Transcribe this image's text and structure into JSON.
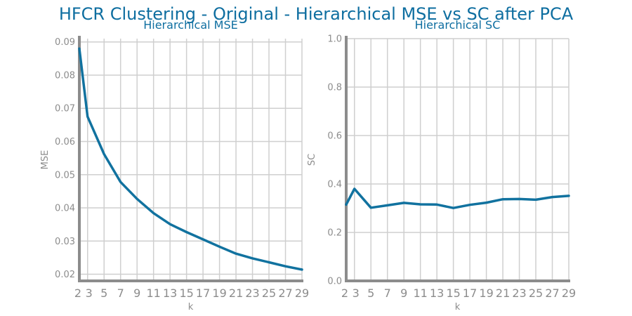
{
  "chart_data": {
    "title": "HFCR Clustering - Original - Hierarchical MSE vs SC after PCA",
    "panels": [
      {
        "type": "line",
        "subtitle": "Hierarchical MSE",
        "xlabel": "k",
        "ylabel": "MSE",
        "xlim": [
          2,
          29
        ],
        "ylim": [
          0.018,
          0.091
        ],
        "xticks": [
          2,
          3,
          5,
          7,
          9,
          11,
          13,
          15,
          17,
          19,
          21,
          23,
          25,
          27,
          29
        ],
        "yticks": [
          0.02,
          0.03,
          0.04,
          0.05,
          0.06,
          0.07,
          0.08,
          0.09
        ],
        "ytick_labels": [
          "0.02",
          "0.03",
          "0.04",
          "0.05",
          "0.06",
          "0.07",
          "0.08",
          "0.09"
        ],
        "grid": true,
        "color": "#11729f",
        "x": [
          2,
          3,
          5,
          7,
          9,
          11,
          13,
          15,
          17,
          19,
          21,
          23,
          25,
          27,
          29
        ],
        "y": [
          0.088,
          0.0675,
          0.0562,
          0.0478,
          0.0427,
          0.0384,
          0.0351,
          0.0327,
          0.0305,
          0.0283,
          0.0262,
          0.0248,
          0.0236,
          0.0224,
          0.0214
        ]
      },
      {
        "type": "line",
        "subtitle": "Hierarchical SC",
        "xlabel": "k",
        "ylabel": "SC",
        "xlim": [
          2,
          29
        ],
        "ylim": [
          0.0,
          1.0
        ],
        "xticks": [
          2,
          3,
          5,
          7,
          9,
          11,
          13,
          15,
          17,
          19,
          21,
          23,
          25,
          27,
          29
        ],
        "yticks": [
          0.0,
          0.2,
          0.4,
          0.6,
          0.8,
          1.0
        ],
        "ytick_labels": [
          "0.0",
          "0.2",
          "0.4",
          "0.6",
          "0.8",
          "1.0"
        ],
        "grid": true,
        "color": "#11729f",
        "x": [
          2,
          3,
          5,
          7,
          9,
          11,
          13,
          15,
          17,
          19,
          21,
          23,
          25,
          27,
          29
        ],
        "y": [
          0.315,
          0.38,
          0.302,
          0.312,
          0.322,
          0.316,
          0.315,
          0.301,
          0.314,
          0.323,
          0.337,
          0.338,
          0.335,
          0.346,
          0.351
        ]
      }
    ]
  }
}
